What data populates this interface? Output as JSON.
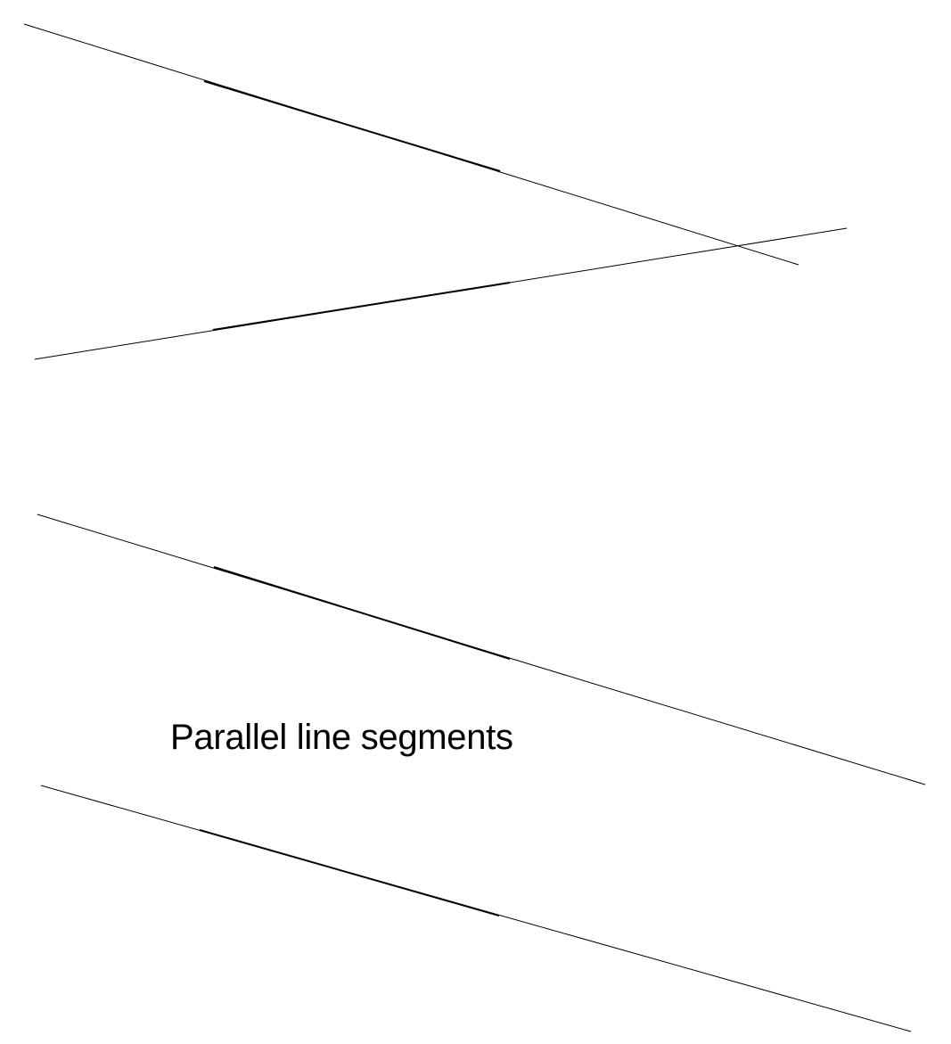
{
  "caption": "Parallel line segments",
  "colors": {
    "background": "#ffffff",
    "line": "#000000"
  }
}
